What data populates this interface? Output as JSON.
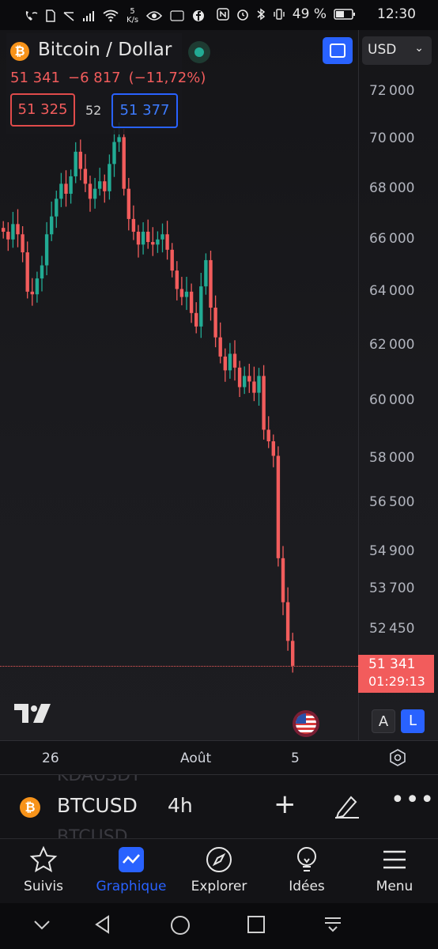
{
  "status_bar": {
    "speed_value": "5",
    "speed_unit": "K/s",
    "battery": "49 %",
    "time": "12:30",
    "icons": [
      "phone-wifi-icon",
      "sim-icon",
      "signal-icon",
      "wifi-icon",
      "eye-icon",
      "temu-icon",
      "facebook-icon",
      "nfc-icon",
      "alarm-icon",
      "bluetooth-icon",
      "vibrate-icon",
      "battery-icon"
    ]
  },
  "header": {
    "title": "Bitcoin / Dollar",
    "last_price": "51 341",
    "change": "−6 817",
    "change_percent": "(−11,72%)",
    "bid": "51 325",
    "spread": "52",
    "ask": "51 377",
    "currency": "USD"
  },
  "colors": {
    "up": "#22ab94",
    "down": "#f25c5c",
    "accent": "#2962ff"
  },
  "chart_data": {
    "type": "candlestick",
    "symbol": "BTCUSD",
    "interval": "4h",
    "x_ticks": [
      "26",
      "Août",
      "5"
    ],
    "y_ticks": [
      72000,
      70000,
      68000,
      66000,
      64000,
      62000,
      60000,
      58000,
      56500,
      54900,
      53700,
      52450
    ],
    "y_scale": "log",
    "current_price": "51 341",
    "countdown": "01:29:13",
    "closes": [
      66300,
      66000,
      66600,
      66200,
      65500,
      64000,
      63900,
      64500,
      65000,
      66200,
      66900,
      67600,
      68200,
      67800,
      68500,
      69500,
      68800,
      68200,
      67600,
      68000,
      68300,
      67900,
      69000,
      69900,
      70100,
      68000,
      66800,
      66300,
      65800,
      66300,
      65900,
      65800,
      66000,
      66200,
      65600,
      64800,
      64100,
      63800,
      64000,
      63200,
      62700,
      64200,
      65200,
      63400,
      62300,
      61600,
      61100,
      61700,
      61200,
      60500,
      60900,
      60700,
      60300,
      60900,
      59000,
      58600,
      58100,
      54700,
      53300,
      52100,
      51341
    ]
  },
  "buttons": {
    "auto_scale": "A",
    "log_scale": "L"
  },
  "toolbar": {
    "symbol": "BTCUSD",
    "interval": "4h",
    "ghost_above": "KDAUSDT",
    "ghost_below": "BTCUSD"
  },
  "nav": {
    "items": [
      {
        "label": "Suivis",
        "icon": "star-icon"
      },
      {
        "label": "Graphique",
        "icon": "chart-icon"
      },
      {
        "label": "Explorer",
        "icon": "compass-icon"
      },
      {
        "label": "Idées",
        "icon": "lightbulb-icon"
      },
      {
        "label": "Menu",
        "icon": "menu-icon"
      }
    ]
  }
}
